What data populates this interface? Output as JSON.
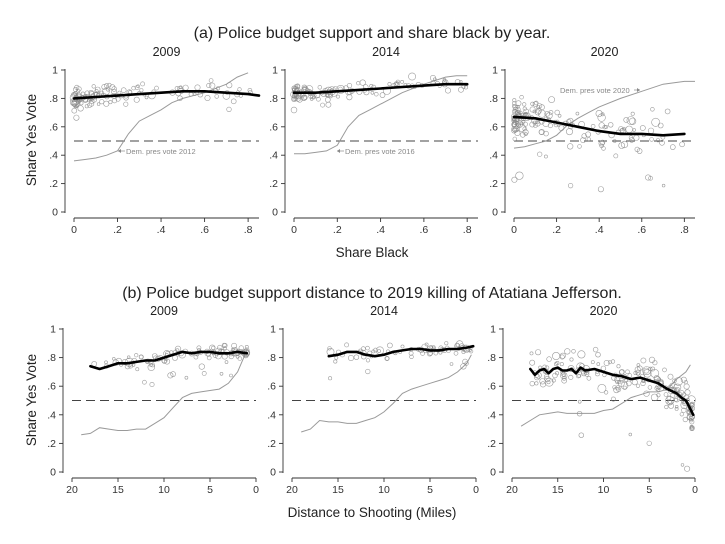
{
  "figure": {
    "title_a": "(a) Police budget support and share black by year.",
    "title_b": "(b) Police budget support distance to 2019 killing of Atatiana Jefferson.",
    "ylabel": "Share Yes Vote",
    "xlabel_a": "Share Black",
    "xlabel_b": "Distance to Shooting (Miles)"
  },
  "colors": {
    "fit": "#000000",
    "scatter": "#8a8a8a",
    "dem": "#9a9a9a",
    "ref": "#444444"
  },
  "chart_data": [
    {
      "type": "scatter",
      "panel": "a",
      "title": "2009",
      "xlim": [
        0,
        0.85
      ],
      "ylim": [
        0,
        1
      ],
      "reference_line": 0.5,
      "xticks": [
        0,
        0.2,
        0.4,
        0.6,
        0.8
      ],
      "xtick_labels": [
        "0",
        ".2",
        ".4",
        ".6",
        ".8"
      ],
      "yticks": [
        0,
        0.2,
        0.4,
        0.6,
        0.8,
        1
      ],
      "ytick_labels": [
        "0",
        ".2",
        ".4",
        ".6",
        ".8",
        "1"
      ],
      "fit": {
        "x": [
          0,
          0.1,
          0.2,
          0.3,
          0.4,
          0.5,
          0.6,
          0.7,
          0.8,
          0.85
        ],
        "y": [
          0.8,
          0.81,
          0.82,
          0.83,
          0.84,
          0.85,
          0.85,
          0.84,
          0.83,
          0.82
        ]
      },
      "dem_vote": {
        "label": "Dem. pres vote 2012",
        "x": [
          0,
          0.05,
          0.1,
          0.15,
          0.2,
          0.25,
          0.3,
          0.35,
          0.4,
          0.45,
          0.5,
          0.6,
          0.7,
          0.75,
          0.8
        ],
        "y": [
          0.36,
          0.37,
          0.38,
          0.4,
          0.43,
          0.55,
          0.64,
          0.68,
          0.72,
          0.77,
          0.8,
          0.84,
          0.9,
          0.95,
          0.98
        ]
      },
      "points_summary": {
        "n": 130,
        "x_range": [
          0,
          0.85
        ],
        "y_center": 0.82,
        "y_spread": 0.05
      }
    },
    {
      "type": "scatter",
      "panel": "a",
      "title": "2014",
      "xlim": [
        0,
        0.85
      ],
      "ylim": [
        0,
        1
      ],
      "reference_line": 0.5,
      "xticks": [
        0,
        0.2,
        0.4,
        0.6,
        0.8
      ],
      "xtick_labels": [
        "0",
        ".2",
        ".4",
        ".6",
        ".8"
      ],
      "yticks": [
        0,
        0.2,
        0.4,
        0.6,
        0.8,
        1
      ],
      "ytick_labels": [
        "0",
        ".2",
        ".4",
        ".6",
        ".8",
        "1"
      ],
      "fit": {
        "x": [
          0,
          0.1,
          0.2,
          0.3,
          0.4,
          0.5,
          0.6,
          0.7,
          0.8
        ],
        "y": [
          0.84,
          0.84,
          0.85,
          0.86,
          0.87,
          0.88,
          0.89,
          0.9,
          0.9
        ]
      },
      "dem_vote": {
        "label": "Dem. pres vote 2016",
        "x": [
          0,
          0.05,
          0.1,
          0.15,
          0.2,
          0.25,
          0.3,
          0.35,
          0.4,
          0.45,
          0.5,
          0.6,
          0.7,
          0.75,
          0.8
        ],
        "y": [
          0.41,
          0.41,
          0.42,
          0.43,
          0.47,
          0.6,
          0.68,
          0.72,
          0.76,
          0.8,
          0.84,
          0.9,
          0.95,
          0.96,
          0.96
        ]
      },
      "points_summary": {
        "n": 120,
        "x_range": [
          0,
          0.8
        ],
        "y_center": 0.85,
        "y_spread": 0.04
      }
    },
    {
      "type": "scatter",
      "panel": "a",
      "title": "2020",
      "xlim": [
        0,
        0.85
      ],
      "ylim": [
        0,
        1
      ],
      "reference_line": 0.5,
      "xticks": [
        0,
        0.2,
        0.4,
        0.6,
        0.8
      ],
      "xtick_labels": [
        "0",
        ".2",
        ".4",
        ".6",
        ".8"
      ],
      "yticks": [
        0,
        0.2,
        0.4,
        0.6,
        0.8,
        1
      ],
      "ytick_labels": [
        "0",
        ".2",
        ".4",
        ".6",
        ".8",
        "1"
      ],
      "fit": {
        "x": [
          0,
          0.1,
          0.2,
          0.3,
          0.4,
          0.5,
          0.6,
          0.7,
          0.8
        ],
        "y": [
          0.67,
          0.66,
          0.63,
          0.6,
          0.57,
          0.55,
          0.55,
          0.54,
          0.55
        ]
      },
      "dem_vote": {
        "label": "Dem. pres vote 2020",
        "x": [
          0,
          0.05,
          0.1,
          0.15,
          0.2,
          0.25,
          0.3,
          0.35,
          0.4,
          0.5,
          0.6,
          0.7,
          0.8,
          0.85
        ],
        "y": [
          0.45,
          0.46,
          0.48,
          0.5,
          0.54,
          0.61,
          0.66,
          0.7,
          0.74,
          0.8,
          0.85,
          0.9,
          0.92,
          0.92
        ]
      },
      "points_summary": {
        "n": 170,
        "x_range": [
          0,
          0.8
        ],
        "y_center": 0.64,
        "y_spread": 0.1
      }
    },
    {
      "type": "scatter",
      "panel": "b",
      "title": "2009",
      "xlim": [
        20,
        0
      ],
      "ylim": [
        0,
        1
      ],
      "reference_line": 0.5,
      "xticks": [
        20,
        15,
        10,
        5,
        0
      ],
      "xtick_labels": [
        "20",
        "15",
        "10",
        "5",
        "0"
      ],
      "yticks": [
        0,
        0.2,
        0.4,
        0.6,
        0.8,
        1
      ],
      "ytick_labels": [
        "0",
        ".2",
        ".4",
        ".6",
        ".8",
        "1"
      ],
      "fit": {
        "x": [
          18,
          17,
          16,
          15,
          14,
          13,
          12,
          11,
          10,
          9,
          8,
          7,
          6,
          5,
          4,
          3,
          2,
          1
        ],
        "y": [
          0.74,
          0.72,
          0.74,
          0.76,
          0.76,
          0.77,
          0.78,
          0.78,
          0.8,
          0.82,
          0.84,
          0.83,
          0.84,
          0.84,
          0.83,
          0.83,
          0.84,
          0.83
        ]
      },
      "dem_vote": {
        "x": [
          19,
          18,
          17,
          16,
          15,
          14,
          13,
          12,
          11,
          10,
          9,
          8,
          7,
          6,
          5,
          4,
          3,
          2,
          1
        ],
        "y": [
          0.26,
          0.27,
          0.31,
          0.3,
          0.29,
          0.29,
          0.3,
          0.3,
          0.34,
          0.38,
          0.45,
          0.52,
          0.55,
          0.56,
          0.57,
          0.58,
          0.62,
          0.7,
          0.85
        ]
      },
      "points_summary": {
        "n": 110,
        "x_range": [
          18,
          1
        ],
        "y_center": 0.82,
        "y_spread": 0.04
      }
    },
    {
      "type": "scatter",
      "panel": "b",
      "title": "2014",
      "xlim": [
        20,
        0
      ],
      "ylim": [
        0,
        1
      ],
      "reference_line": 0.5,
      "xticks": [
        20,
        15,
        10,
        5,
        0
      ],
      "xtick_labels": [
        "20",
        "15",
        "10",
        "5",
        "0"
      ],
      "yticks": [
        0,
        0.2,
        0.4,
        0.6,
        0.8,
        1
      ],
      "ytick_labels": [
        "0",
        ".2",
        ".4",
        ".6",
        ".8",
        "1"
      ],
      "fit": {
        "x": [
          16,
          15,
          14,
          13,
          12,
          11,
          10,
          9,
          8,
          7,
          6,
          5,
          4,
          3,
          2,
          1,
          0.3
        ],
        "y": [
          0.81,
          0.82,
          0.84,
          0.84,
          0.82,
          0.81,
          0.82,
          0.84,
          0.85,
          0.86,
          0.86,
          0.85,
          0.85,
          0.86,
          0.86,
          0.87,
          0.88
        ]
      },
      "dem_vote": {
        "x": [
          19,
          18,
          17,
          16,
          15,
          14,
          13,
          12,
          11,
          10,
          9,
          8,
          7,
          6,
          5,
          4,
          3,
          2,
          1,
          0.5
        ],
        "y": [
          0.28,
          0.3,
          0.36,
          0.35,
          0.35,
          0.34,
          0.34,
          0.36,
          0.38,
          0.42,
          0.48,
          0.55,
          0.58,
          0.6,
          0.62,
          0.64,
          0.66,
          0.7,
          0.76,
          0.82
        ]
      },
      "points_summary": {
        "n": 80,
        "x_range": [
          16,
          0.5
        ],
        "y_center": 0.85,
        "y_spread": 0.04
      }
    },
    {
      "type": "scatter",
      "panel": "b",
      "title": "2020",
      "xlim": [
        20,
        0
      ],
      "ylim": [
        0,
        1
      ],
      "reference_line": 0.5,
      "xticks": [
        20,
        15,
        10,
        5,
        0
      ],
      "xtick_labels": [
        "20",
        "15",
        "10",
        "5",
        "0"
      ],
      "yticks": [
        0,
        0.2,
        0.4,
        0.6,
        0.8,
        1
      ],
      "ytick_labels": [
        "0",
        ".2",
        ".4",
        ".6",
        ".8",
        "1"
      ],
      "fit": {
        "x": [
          18,
          17.5,
          17,
          16.5,
          16,
          15.5,
          15,
          14.5,
          14,
          13.5,
          13,
          12.5,
          12,
          11,
          10,
          9,
          8,
          7,
          6,
          5,
          4,
          3,
          2,
          1.5,
          1,
          0.5,
          0.2
        ],
        "y": [
          0.72,
          0.68,
          0.71,
          0.72,
          0.69,
          0.72,
          0.73,
          0.71,
          0.71,
          0.72,
          0.69,
          0.73,
          0.71,
          0.72,
          0.7,
          0.68,
          0.67,
          0.65,
          0.66,
          0.64,
          0.62,
          0.58,
          0.55,
          0.52,
          0.5,
          0.44,
          0.4
        ]
      },
      "dem_vote": {
        "x": [
          19,
          18,
          17,
          16,
          15,
          14,
          13,
          12,
          11,
          10,
          9,
          8,
          7,
          6,
          5,
          4,
          3,
          2,
          1,
          0.5
        ],
        "y": [
          0.32,
          0.36,
          0.4,
          0.41,
          0.42,
          0.41,
          0.41,
          0.41,
          0.41,
          0.43,
          0.44,
          0.48,
          0.52,
          0.54,
          0.56,
          0.56,
          0.58,
          0.65,
          0.7,
          0.75
        ]
      },
      "points_summary": {
        "n": 200,
        "x_range": [
          18,
          0.3
        ],
        "y_center": 0.66,
        "y_spread": 0.1
      }
    }
  ]
}
